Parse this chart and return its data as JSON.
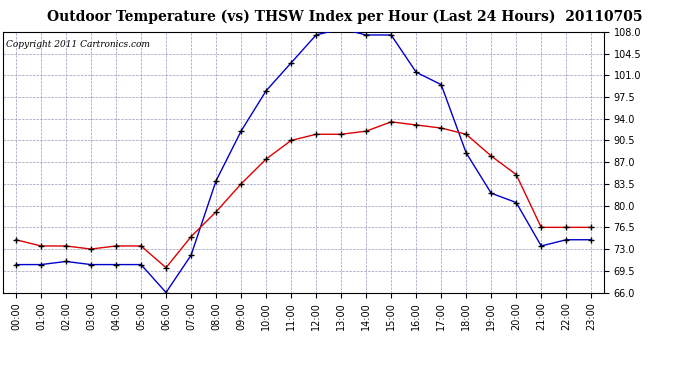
{
  "title": "Outdoor Temperature (vs) THSW Index per Hour (Last 24 Hours)  20110705",
  "copyright": "Copyright 2011 Cartronics.com",
  "hours": [
    "00:00",
    "01:00",
    "02:00",
    "03:00",
    "04:00",
    "05:00",
    "06:00",
    "07:00",
    "08:00",
    "09:00",
    "10:00",
    "11:00",
    "12:00",
    "13:00",
    "14:00",
    "15:00",
    "16:00",
    "17:00",
    "18:00",
    "19:00",
    "20:00",
    "21:00",
    "22:00",
    "23:00"
  ],
  "temp_red": [
    74.5,
    73.5,
    73.5,
    73.0,
    73.5,
    73.5,
    70.0,
    75.0,
    79.0,
    83.5,
    87.5,
    90.5,
    91.5,
    91.5,
    92.0,
    93.5,
    93.0,
    92.5,
    91.5,
    88.0,
    85.0,
    76.5,
    76.5,
    76.5
  ],
  "thsw_blue": [
    70.5,
    70.5,
    71.0,
    70.5,
    70.5,
    70.5,
    66.0,
    72.0,
    84.0,
    92.0,
    98.5,
    103.0,
    107.5,
    108.5,
    107.5,
    107.5,
    101.5,
    99.5,
    88.5,
    82.0,
    80.5,
    73.5,
    74.5,
    74.5
  ],
  "ylim": [
    66.0,
    108.0
  ],
  "yticks": [
    66.0,
    69.5,
    73.0,
    76.5,
    80.0,
    83.5,
    87.0,
    90.5,
    94.0,
    97.5,
    101.0,
    104.5,
    108.0
  ],
  "bg_color": "#ffffff",
  "plot_bg_color": "#ffffff",
  "grid_color": "#9999bb",
  "red_color": "#dd0000",
  "blue_color": "#0000cc",
  "marker_color": "#000000",
  "title_fontsize": 10,
  "copyright_fontsize": 6.5,
  "tick_fontsize": 7
}
